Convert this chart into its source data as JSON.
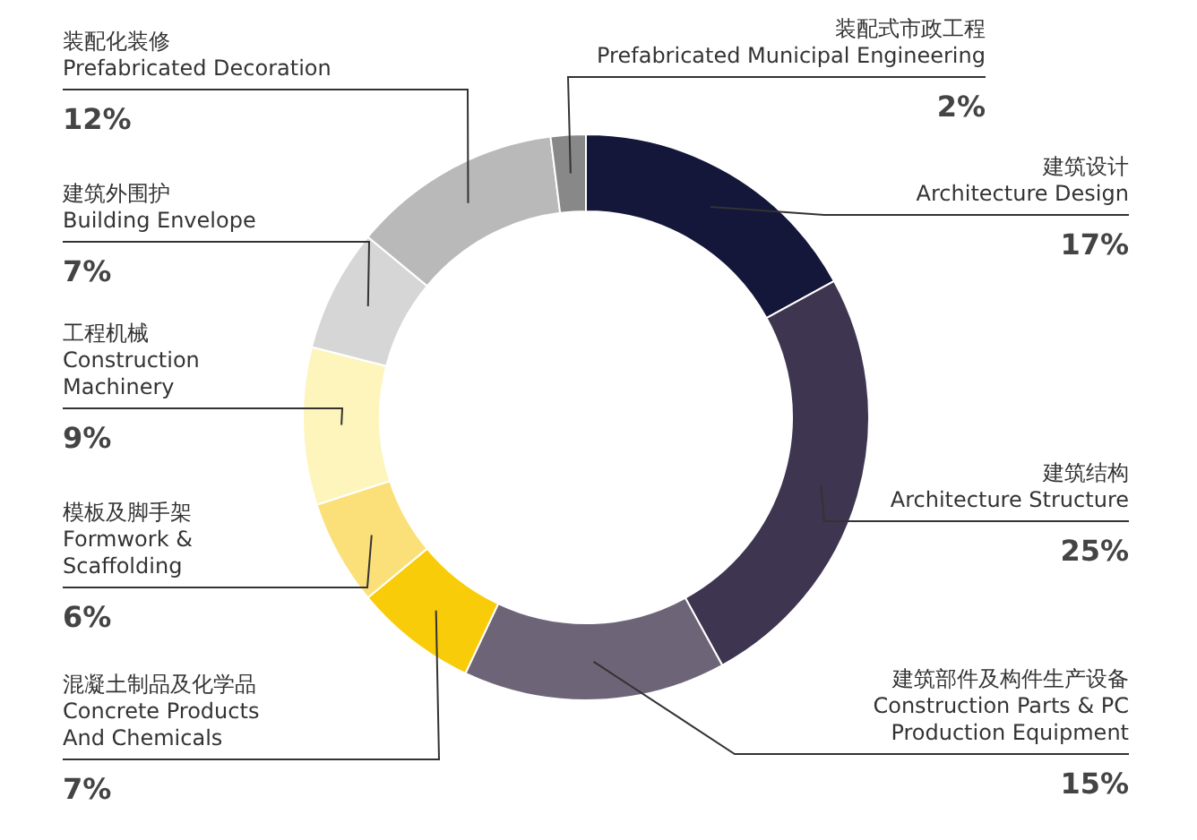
{
  "chart_data": {
    "type": "donut",
    "categories": [
      "建筑设计\nArchitecture Design",
      "建筑结构\nArchitecture Structure",
      "建筑部件及构件生产设备\nConstruction Parts & PC\nProduction Equipment",
      "混凝土制品及化学品\nConcrete Products\nAnd Chemicals",
      "模板及脚手架\nFormwork &\nScaffolding",
      "工程机械\nConstruction\nMachinery",
      "建筑外围护\nBuilding Envelope",
      "装配化装修\nPrefabricated Decoration",
      "装配式市政工程\nPrefabricated Municipal Engineering"
    ],
    "values": [
      17,
      25,
      15,
      7,
      6,
      9,
      7,
      12,
      2
    ],
    "value_labels": [
      "17%",
      "25%",
      "15%",
      "7%",
      "6%",
      "9%",
      "7%",
      "12%",
      "2%"
    ],
    "colors": [
      "#14163a",
      "#3e3550",
      "#6e6478",
      "#f9cc0a",
      "#fbe07a",
      "#fdf5bc",
      "#d6d6d6",
      "#b9b9b9",
      "#888888"
    ]
  }
}
